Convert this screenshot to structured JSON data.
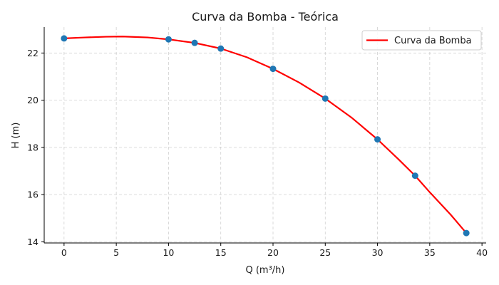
{
  "chart_data": {
    "type": "line",
    "title": "Curva da Bomba - Teórica",
    "xlabel": "Q (m³/h)",
    "ylabel": "H (m)",
    "xlim": [
      -1.9,
      40.4
    ],
    "ylim": [
      13.95,
      23.1
    ],
    "xticks": [
      0,
      5,
      10,
      15,
      20,
      25,
      30,
      35,
      40
    ],
    "yticks": [
      14,
      16,
      18,
      20,
      22
    ],
    "grid": true,
    "legend_position": "top-right",
    "series": [
      {
        "name": "Curva da Bomba",
        "kind": "curve",
        "color": "#ff0000",
        "x": [
          0,
          2,
          4,
          5.6,
          8,
          10,
          12.5,
          15,
          17.5,
          20,
          22.5,
          25,
          27.5,
          30,
          32,
          33.6,
          35,
          37,
          38.5
        ],
        "y": [
          22.62,
          22.66,
          22.69,
          22.7,
          22.66,
          22.58,
          22.43,
          22.19,
          21.82,
          21.33,
          20.75,
          20.07,
          19.27,
          18.34,
          17.5,
          16.8,
          16.1,
          15.15,
          14.37
        ]
      },
      {
        "name": "",
        "kind": "points",
        "color": "#1f77b4",
        "x": [
          0,
          10,
          12.5,
          15,
          20,
          25,
          30,
          33.6,
          38.5
        ],
        "y": [
          22.62,
          22.58,
          22.43,
          22.19,
          21.33,
          20.07,
          18.34,
          16.8,
          14.37
        ]
      }
    ]
  }
}
